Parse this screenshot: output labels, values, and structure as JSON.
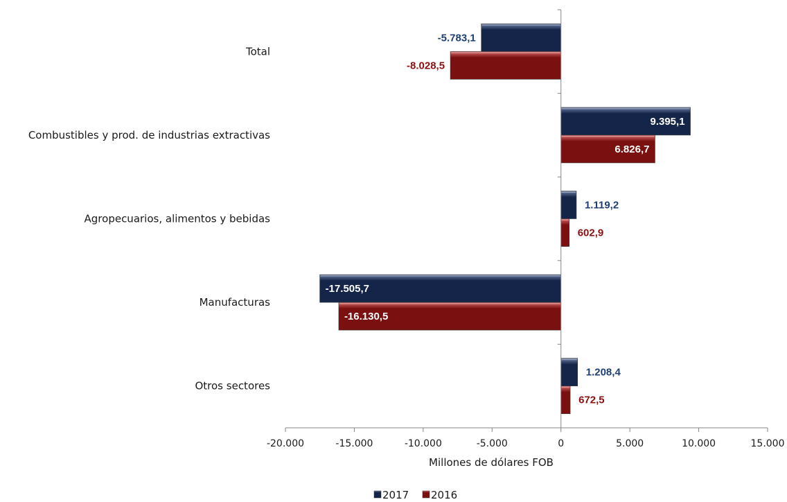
{
  "chart_data": {
    "type": "bar",
    "orientation": "horizontal",
    "categories": [
      "Total",
      "Combustibles y prod. de industrias extractivas",
      "Agropecuarios, alimentos y bebidas",
      "Manufacturas",
      "Otros sectores"
    ],
    "series": [
      {
        "name": "2017",
        "values": [
          -5783.1,
          9395.1,
          1119.2,
          -17505.7,
          1208.4
        ],
        "labels": [
          "-5.783,1",
          "9.395,1",
          "1.119,2",
          "-17.505,7",
          "1.208,4"
        ],
        "color": "#15254a",
        "label_color": "#1f3f73"
      },
      {
        "name": "2016",
        "values": [
          -8028.5,
          6826.7,
          602.9,
          -16130.5,
          672.5
        ],
        "labels": [
          "-8.028,5",
          "6.826,7",
          "602,9",
          "-16.130,5",
          "672,5"
        ],
        "color": "#7a1010",
        "label_color": "#8b1010"
      }
    ],
    "xlabel": "Millones de dólares FOB",
    "xlim": [
      -20000,
      15000
    ],
    "xticks": [
      -20000,
      -15000,
      -10000,
      -5000,
      0,
      5000,
      10000,
      15000
    ],
    "xtick_labels": [
      "-20.000",
      "-15.000",
      "-10.000",
      "-5.000",
      "0",
      "5.000",
      "10.000",
      "15.000"
    ],
    "grid": false,
    "legend_position": "bottom"
  }
}
